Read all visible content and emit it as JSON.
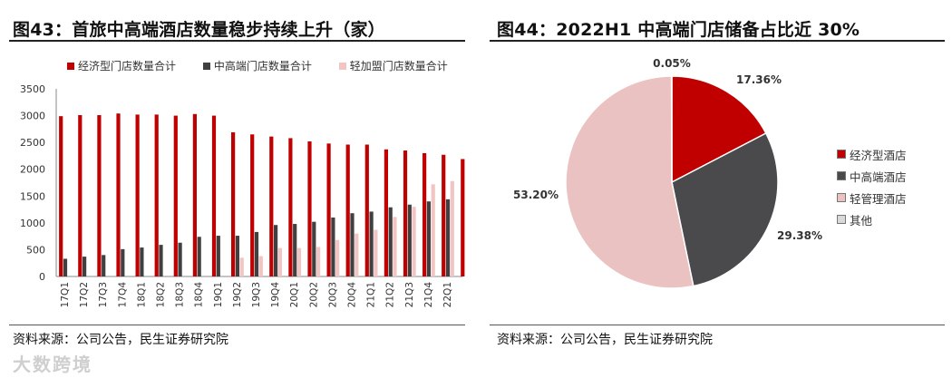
{
  "left": {
    "title": "图43：首旅中高端酒店数量稳步持续上升（家）",
    "source": "资料来源：公司公告，民生证券研究院"
  },
  "right": {
    "title": "图44：2022H1 中高端门店储备占比近 30%",
    "source": "资料来源：公司公告，民生证券研究院"
  },
  "watermark": "大数跨境",
  "chart_data": [
    {
      "type": "bar",
      "categories": [
        "17Q1",
        "17Q2",
        "17Q3",
        "17Q4",
        "18Q1",
        "18Q2",
        "18Q3",
        "18Q4",
        "19Q1",
        "19Q2",
        "19Q3",
        "19Q4",
        "20Q1",
        "20Q2",
        "20Q3",
        "20Q4",
        "21Q1",
        "21Q2",
        "21Q3",
        "21Q4",
        "22Q1"
      ],
      "series": [
        {
          "name": "经济型门店数量合计",
          "color": "#c00000",
          "values": [
            2990,
            3010,
            3010,
            3040,
            3020,
            3020,
            3000,
            3030,
            3000,
            2690,
            2650,
            2610,
            2580,
            2520,
            2480,
            2460,
            2460,
            2370,
            2350,
            2300,
            2270
          ]
        },
        {
          "name": "中高端门店数量合计",
          "color": "#404040",
          "values": [
            330,
            370,
            400,
            510,
            540,
            590,
            630,
            740,
            760,
            760,
            830,
            960,
            980,
            1020,
            1100,
            1180,
            1210,
            1290,
            1340,
            1400,
            1440
          ]
        },
        {
          "name": "轻加盟门店数量合计",
          "color": "#f2c5c5",
          "values": [
            0,
            0,
            0,
            0,
            0,
            0,
            0,
            0,
            0,
            350,
            380,
            530,
            530,
            550,
            680,
            800,
            870,
            1110,
            1300,
            1720,
            1780
          ]
        }
      ],
      "extra_bar": {
        "value": 2190,
        "color": "#c00000"
      },
      "ylim": [
        0,
        3500
      ],
      "yticks": [
        0,
        500,
        1000,
        1500,
        2000,
        2500,
        3000,
        3500
      ],
      "legend_position": "top",
      "grid": false
    },
    {
      "type": "pie",
      "labels": [
        "经济型酒店",
        "中高端酒店",
        "轻管理酒店",
        "其他"
      ],
      "values": [
        17.36,
        29.38,
        53.2,
        0.05
      ],
      "data_labels": [
        "17.36%",
        "29.38%",
        "53.20%",
        "0.05%"
      ],
      "colors": [
        "#c00000",
        "#4a4a4d",
        "#ebc2c2",
        "#d9d9d9"
      ],
      "legend_position": "right"
    }
  ]
}
